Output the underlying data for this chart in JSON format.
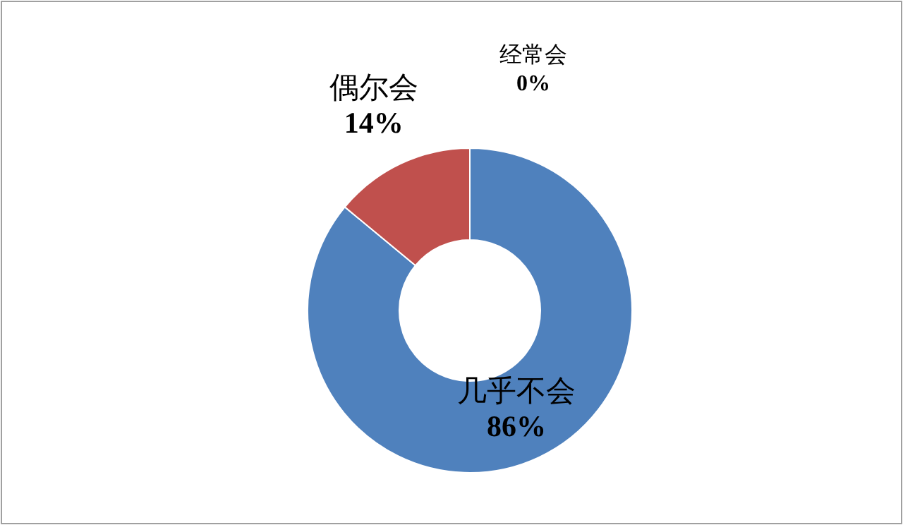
{
  "chart_data": {
    "type": "donut",
    "categories": [
      "几乎不会",
      "偶尔会",
      "经常会"
    ],
    "values": [
      86,
      14,
      0
    ],
    "value_labels": [
      "86%",
      "14%",
      "0%"
    ],
    "colors": [
      "#4f81bd",
      "#c0504d",
      null
    ]
  }
}
